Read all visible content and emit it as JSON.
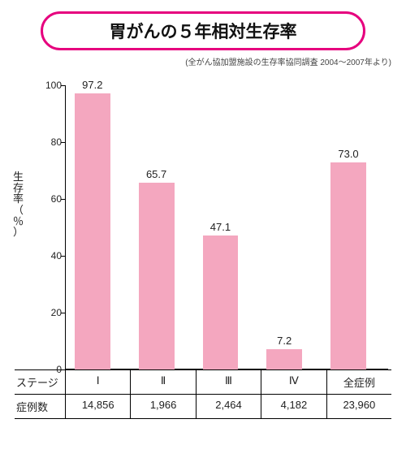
{
  "title": {
    "text": "胃がんの５年相対生存率",
    "fontsize": 21,
    "border_color": "#e6007e",
    "text_color": "#111111"
  },
  "subtitle": {
    "text": "(全がん協加盟施設の生存率協同調査 2004〜2007年より)",
    "fontsize": 10
  },
  "chart": {
    "type": "bar",
    "ylim": [
      0,
      100
    ],
    "ytick_step": 20,
    "yticks": [
      0,
      20,
      40,
      60,
      80,
      100
    ],
    "ylabel": "生存率（％）",
    "ylabel_fontsize": 13,
    "tick_fontsize": 12,
    "value_fontsize": 13,
    "bar_color": "#f4a7bf",
    "axis_color": "#000000",
    "background_color": "#ffffff",
    "bar_width_pct": 11,
    "bar_gap_pct": 8.8,
    "bar_start_pct": 3,
    "categories": [
      "Ⅰ",
      "Ⅱ",
      "Ⅲ",
      "Ⅳ",
      "全症例"
    ],
    "values": [
      97.2,
      65.7,
      47.1,
      7.2,
      73.0
    ],
    "value_labels": [
      "97.2",
      "65.7",
      "47.1",
      "7.2",
      "73.0"
    ]
  },
  "table": {
    "row_header_fontsize": 13,
    "cell_fontsize": 13,
    "rows": [
      {
        "header": "ステージ",
        "cells": [
          "Ⅰ",
          "Ⅱ",
          "Ⅲ",
          "Ⅳ",
          "全症例"
        ]
      },
      {
        "header": "症例数",
        "cells": [
          "14,856",
          "1,966",
          "2,464",
          "4,182",
          "23,960"
        ]
      }
    ]
  }
}
